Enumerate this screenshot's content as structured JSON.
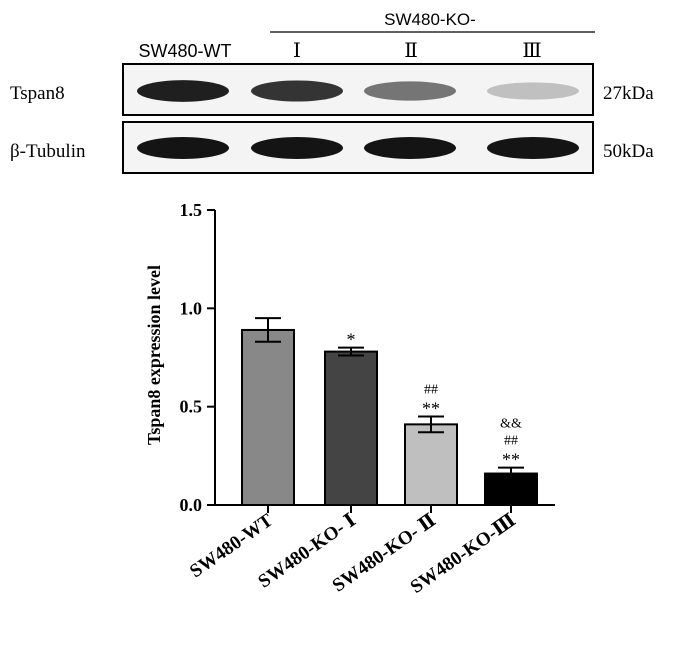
{
  "blot": {
    "group_header": "SW480-KO-",
    "lane_labels": [
      "SW480-WT",
      "Ⅰ",
      "Ⅱ",
      "Ⅲ"
    ],
    "rows": [
      {
        "protein": "Tspan8",
        "size": "27kDa",
        "band_levels": [
          0.95,
          0.85,
          0.55,
          0.2
        ]
      },
      {
        "protein": "β-Tubulin",
        "size": "50kDa",
        "band_levels": [
          1,
          1,
          1,
          1
        ]
      }
    ]
  },
  "chart_data": {
    "type": "bar",
    "categories": [
      "SW480-WT",
      "SW480-KO- Ⅰ",
      "SW480-KO- Ⅱ",
      "SW480-KO-Ⅲ"
    ],
    "values": [
      0.89,
      0.78,
      0.41,
      0.16
    ],
    "errors": [
      0.06,
      0.02,
      0.04,
      0.03
    ],
    "bar_colors": [
      "#888888",
      "#444444",
      "#bfbfbf",
      "#000000"
    ],
    "annotations": [
      [],
      [
        "*"
      ],
      [
        "##",
        "**"
      ],
      [
        "&&",
        "##",
        "**"
      ]
    ],
    "ylabel": "Tspan8 expression level",
    "ylim": [
      0,
      1.5
    ],
    "yticks": [
      "0.0",
      "0.5",
      "1.0",
      "1.5"
    ]
  }
}
